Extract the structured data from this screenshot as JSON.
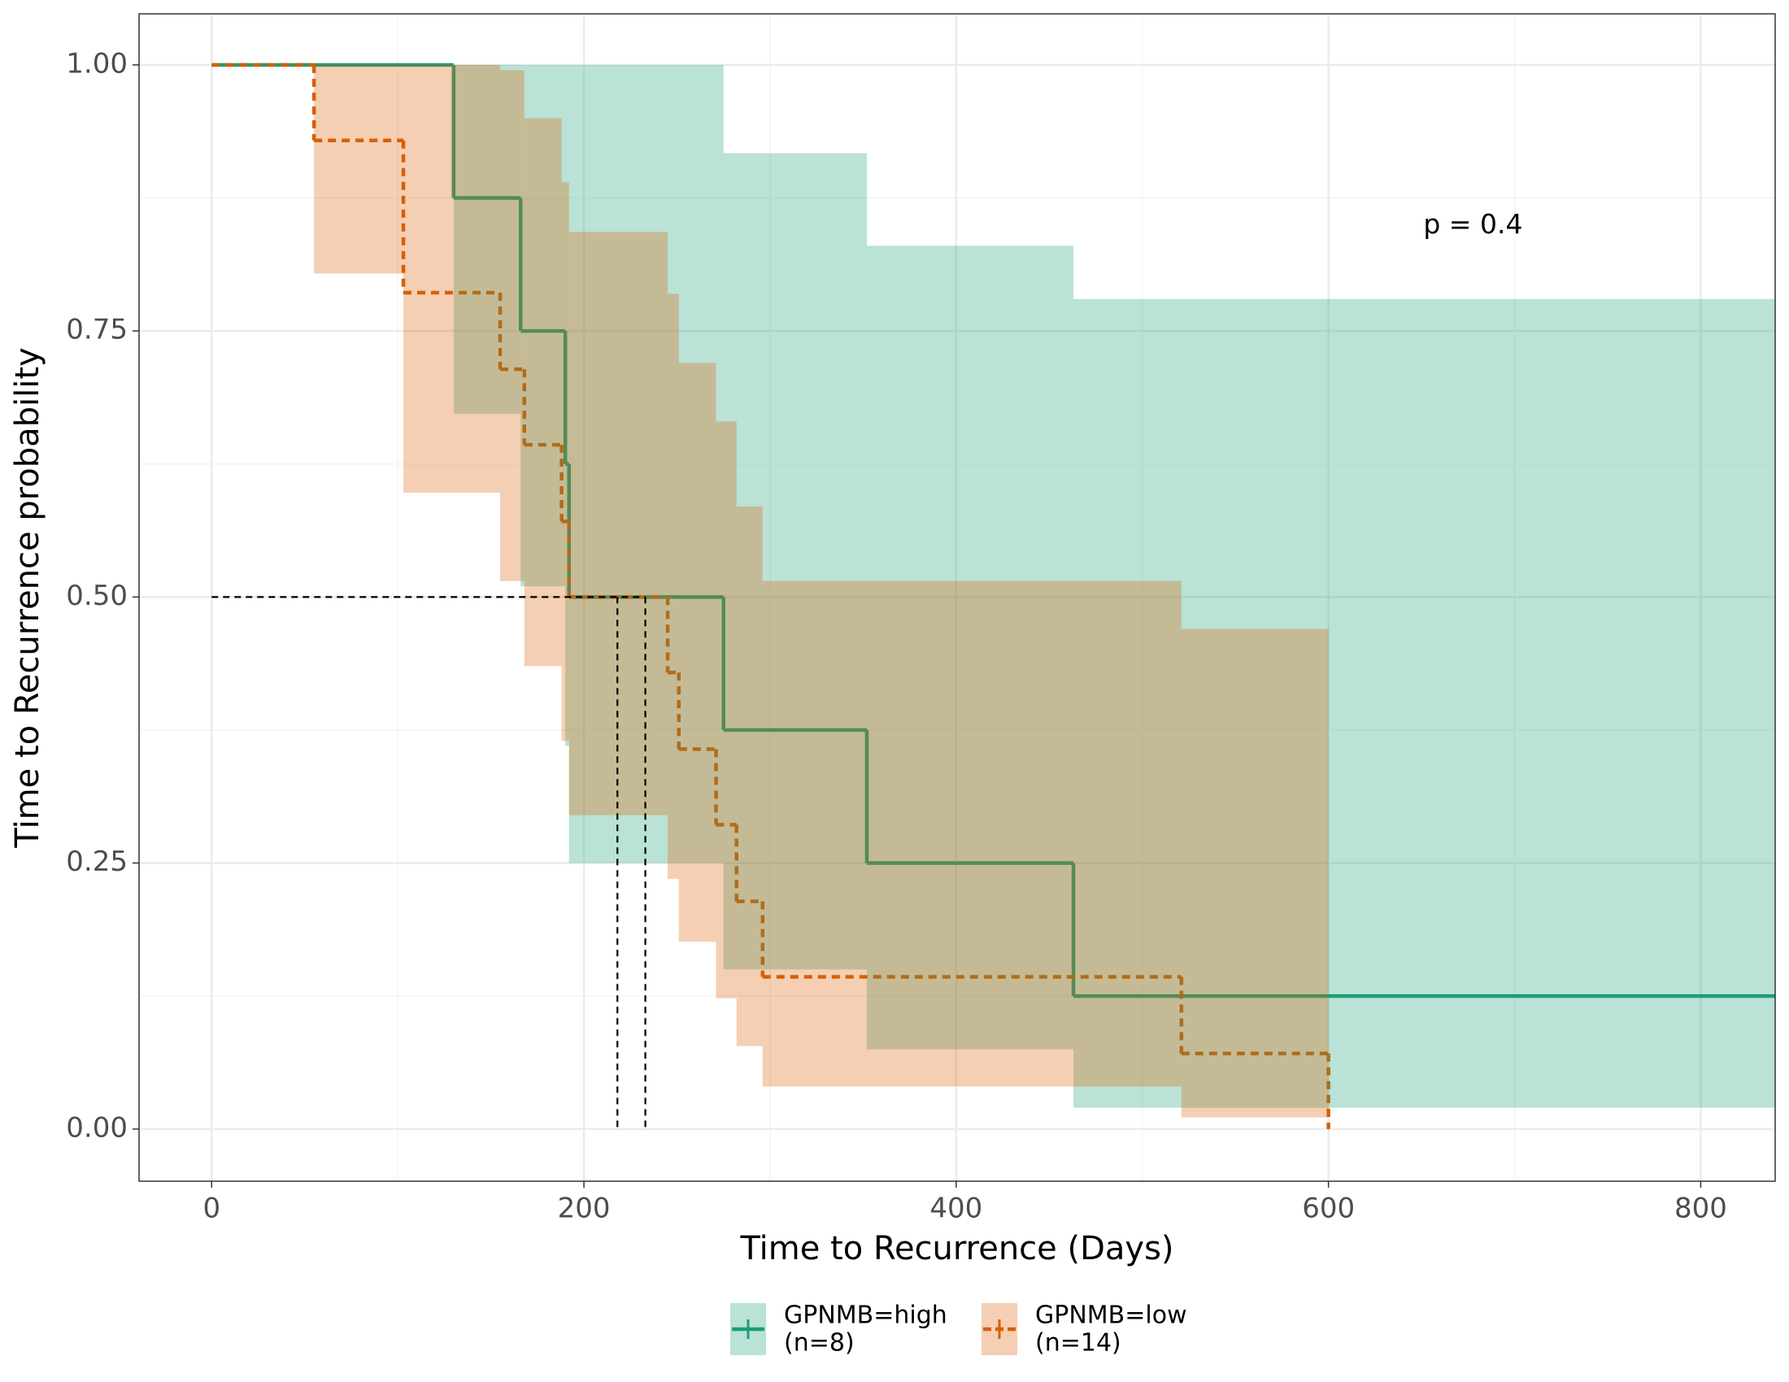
{
  "chart_data": {
    "type": "kaplan-meier",
    "xlabel": "Time to Recurrence (Days)",
    "ylabel": "Time to Recurrence probability",
    "annotation": {
      "text": "p = 0.4",
      "x": 651,
      "y": 0.849
    },
    "xlim": [
      -39,
      840
    ],
    "ylim": [
      -0.049,
      1.048
    ],
    "xticks": [
      0,
      200,
      400,
      600,
      800
    ],
    "yticks": [
      {
        "value": 0,
        "label": "0.00"
      },
      {
        "value": 0.25,
        "label": "0.25"
      },
      {
        "value": 0.5,
        "label": "0.50"
      },
      {
        "value": 0.75,
        "label": "0.75"
      },
      {
        "value": 1,
        "label": "1.00"
      }
    ],
    "grid": true,
    "legend": "bottom",
    "series": [
      {
        "name": "GPNMB=high",
        "n_label": "(n=8)",
        "color": "#1b9e77",
        "dashed": false,
        "median": 233,
        "x": [
          0,
          130,
          166,
          190,
          192,
          275,
          352,
          463
        ],
        "values": [
          1,
          0.875,
          0.75,
          0.625,
          0.5,
          0.375,
          0.25,
          0.125
        ],
        "upper": [
          1,
          1,
          1,
          1,
          1,
          0.917,
          0.83,
          0.78
        ],
        "lower": [
          1,
          0.672,
          0.51,
          0.36,
          0.25,
          0.15,
          0.075,
          0.02
        ]
      },
      {
        "name": "GPNMB=low",
        "n_label": "(n=14)",
        "color": "#d95f02",
        "dashed": true,
        "median": 218,
        "x": [
          0,
          55,
          103,
          155,
          168,
          188,
          192,
          245,
          251,
          271,
          282,
          296,
          521,
          600
        ],
        "values": [
          1,
          0.929,
          0.786,
          0.714,
          0.643,
          0.571,
          0.5,
          0.429,
          0.357,
          0.286,
          0.214,
          0.143,
          0.071,
          0
        ],
        "upper": [
          1,
          1,
          1,
          0.995,
          0.95,
          0.89,
          0.843,
          0.785,
          0.72,
          0.665,
          0.585,
          0.515,
          0.47,
          null
        ],
        "lower": [
          1,
          0.804,
          0.598,
          0.515,
          0.435,
          0.365,
          0.295,
          0.235,
          0.176,
          0.123,
          0.078,
          0.04,
          0.011,
          null
        ]
      }
    ]
  }
}
